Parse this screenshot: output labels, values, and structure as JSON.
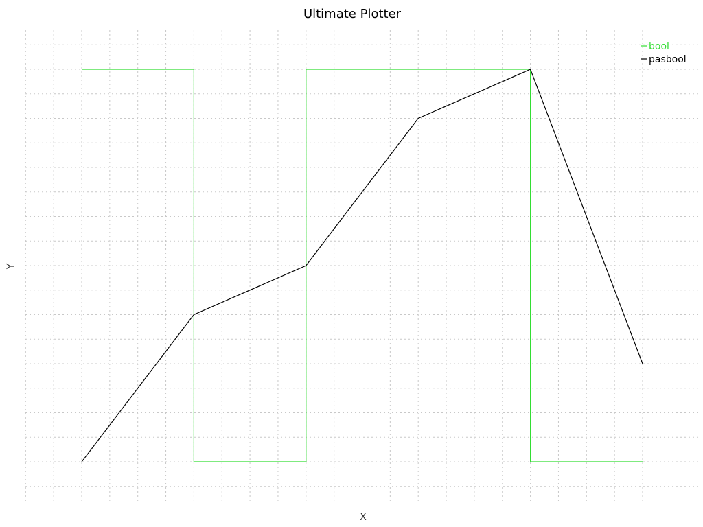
{
  "chart_data": {
    "type": "line",
    "title": "Ultimate Plotter",
    "xlabel": "X",
    "ylabel": "Y",
    "grid": true,
    "legend_position": "top-right",
    "xlim": [
      -1,
      10
    ],
    "ylim": [
      -1,
      8.6
    ],
    "x": [
      0,
      2,
      4,
      6,
      8,
      10
    ],
    "series": [
      {
        "name": "bool",
        "color": "#33dd33",
        "step": "post",
        "values": [
          8,
          0,
          8,
          8,
          0,
          0
        ]
      },
      {
        "name": "pasbool",
        "color": "#000000",
        "step": "none",
        "values": [
          0,
          3,
          4,
          7,
          8,
          2
        ]
      }
    ]
  }
}
